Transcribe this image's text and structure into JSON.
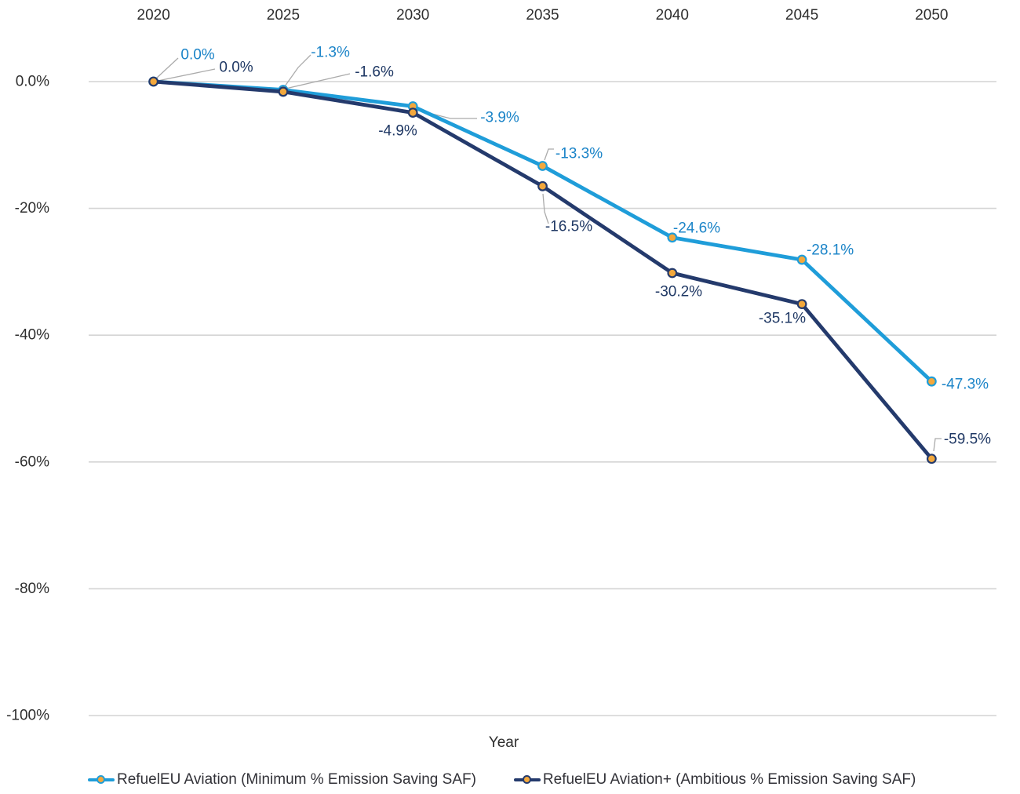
{
  "chart_data": {
    "type": "line",
    "title": "",
    "xlabel": "Year",
    "ylabel": "",
    "categories": [
      "2020",
      "2025",
      "2030",
      "2035",
      "2040",
      "2045",
      "2050"
    ],
    "series": [
      {
        "name": "RefuelEU Aviation (Minimum % Emission Saving SAF)",
        "values": [
          0.0,
          -1.3,
          -3.9,
          -13.3,
          -24.6,
          -28.1,
          -47.3
        ],
        "labels": [
          "0.0%",
          "-1.3%",
          "-3.9%",
          "-13.3%",
          "-24.6%",
          "-28.1%",
          "-47.3%"
        ],
        "color": "#1F9DD9",
        "label_color": "#1B84C8"
      },
      {
        "name": "RefuelEU Aviation+ (Ambitious % Emission Saving SAF)",
        "values": [
          0.0,
          -1.6,
          -4.9,
          -16.5,
          -30.2,
          -35.1,
          -59.5
        ],
        "labels": [
          "0.0%",
          "-1.6%",
          "-4.9%",
          "-16.5%",
          "-30.2%",
          "-35.1%",
          "-59.5%"
        ],
        "color": "#243A6C",
        "label_color": "#1F3864"
      }
    ],
    "marker": {
      "fill": "#F3A83C"
    },
    "y_axis": {
      "ticks": [
        "0.0%",
        "-20%",
        "-40%",
        "-60%",
        "-80%",
        "-100%"
      ],
      "values": [
        0,
        -20,
        -40,
        -60,
        -80,
        -100
      ],
      "range": [
        0,
        -100
      ]
    },
    "x_axis_position": "top",
    "grid": true,
    "gridline_color": "#D4D4D4",
    "leader_line_color": "#ABABAB",
    "legend_position": "bottom"
  }
}
